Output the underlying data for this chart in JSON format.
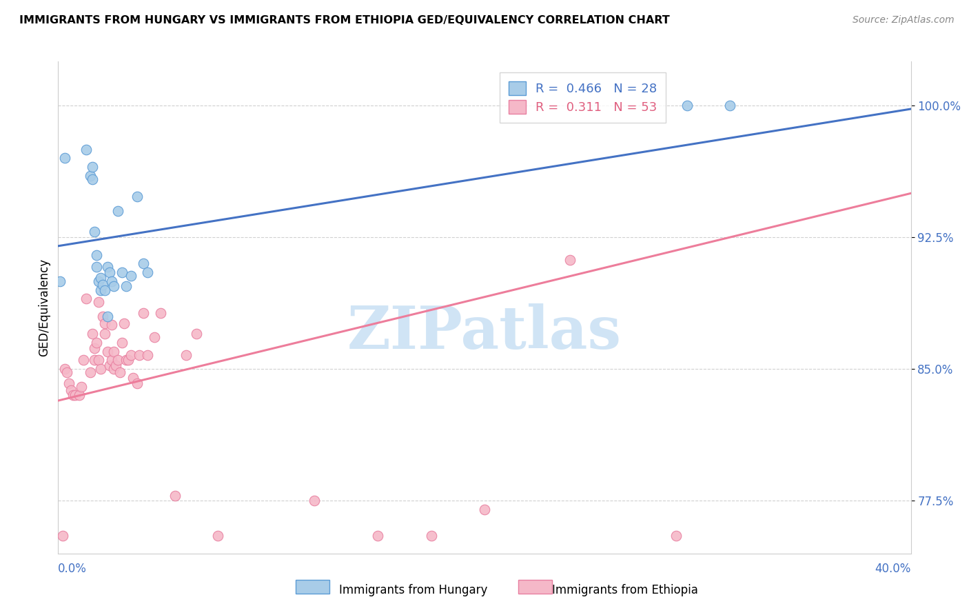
{
  "title": "IMMIGRANTS FROM HUNGARY VS IMMIGRANTS FROM ETHIOPIA GED/EQUIVALENCY CORRELATION CHART",
  "source": "Source: ZipAtlas.com",
  "ylabel": "GED/Equivalency",
  "ytick_vals": [
    0.775,
    0.85,
    0.925,
    1.0
  ],
  "ytick_labels": [
    "77.5%",
    "85.0%",
    "92.5%",
    "100.0%"
  ],
  "xmin": 0.0,
  "xmax": 0.4,
  "ymin": 0.745,
  "ymax": 1.025,
  "legend_line1": "R =  0.466   N = 28",
  "legend_line2": "R =  0.311   N = 53",
  "blue_fill": "#a8cce8",
  "blue_edge": "#5b9bd5",
  "pink_fill": "#f5b8c8",
  "pink_edge": "#e87fa0",
  "blue_line_color": "#4472c4",
  "pink_line_color": "#ed7d9b",
  "hungary_scatter_x": [
    0.001,
    0.003,
    0.013,
    0.015,
    0.016,
    0.016,
    0.017,
    0.018,
    0.018,
    0.019,
    0.02,
    0.02,
    0.021,
    0.022,
    0.023,
    0.023,
    0.024,
    0.025,
    0.026,
    0.028,
    0.03,
    0.032,
    0.034,
    0.037,
    0.04,
    0.042,
    0.295,
    0.315
  ],
  "hungary_scatter_y": [
    0.9,
    0.97,
    0.975,
    0.96,
    0.965,
    0.958,
    0.928,
    0.915,
    0.908,
    0.9,
    0.895,
    0.902,
    0.898,
    0.895,
    0.88,
    0.908,
    0.905,
    0.9,
    0.897,
    0.94,
    0.905,
    0.897,
    0.903,
    0.948,
    0.91,
    0.905,
    1.0,
    1.0
  ],
  "ethiopia_scatter_x": [
    0.002,
    0.003,
    0.004,
    0.005,
    0.006,
    0.007,
    0.008,
    0.01,
    0.011,
    0.012,
    0.013,
    0.015,
    0.016,
    0.017,
    0.017,
    0.018,
    0.019,
    0.019,
    0.02,
    0.021,
    0.022,
    0.022,
    0.023,
    0.024,
    0.025,
    0.025,
    0.026,
    0.026,
    0.027,
    0.028,
    0.029,
    0.03,
    0.031,
    0.032,
    0.033,
    0.034,
    0.035,
    0.037,
    0.038,
    0.04,
    0.042,
    0.045,
    0.048,
    0.055,
    0.06,
    0.065,
    0.075,
    0.12,
    0.15,
    0.175,
    0.2,
    0.24,
    0.29
  ],
  "ethiopia_scatter_y": [
    0.755,
    0.85,
    0.848,
    0.842,
    0.838,
    0.835,
    0.835,
    0.835,
    0.84,
    0.855,
    0.89,
    0.848,
    0.87,
    0.855,
    0.862,
    0.865,
    0.855,
    0.888,
    0.85,
    0.88,
    0.87,
    0.876,
    0.86,
    0.852,
    0.855,
    0.875,
    0.86,
    0.85,
    0.852,
    0.855,
    0.848,
    0.865,
    0.876,
    0.855,
    0.855,
    0.858,
    0.845,
    0.842,
    0.858,
    0.882,
    0.858,
    0.868,
    0.882,
    0.778,
    0.858,
    0.87,
    0.755,
    0.775,
    0.755,
    0.755,
    0.77,
    0.912,
    0.755
  ],
  "blue_line_x0": 0.0,
  "blue_line_x1": 0.4,
  "blue_line_y0": 0.92,
  "blue_line_y1": 0.998,
  "pink_line_x0": 0.0,
  "pink_line_x1": 0.4,
  "pink_line_y0": 0.832,
  "pink_line_y1": 0.95,
  "watermark_text": "ZIPatlas",
  "watermark_color": "#d0e4f5",
  "label_hungary": "Immigrants from Hungary",
  "label_ethiopia": "Immigrants from Ethiopia"
}
